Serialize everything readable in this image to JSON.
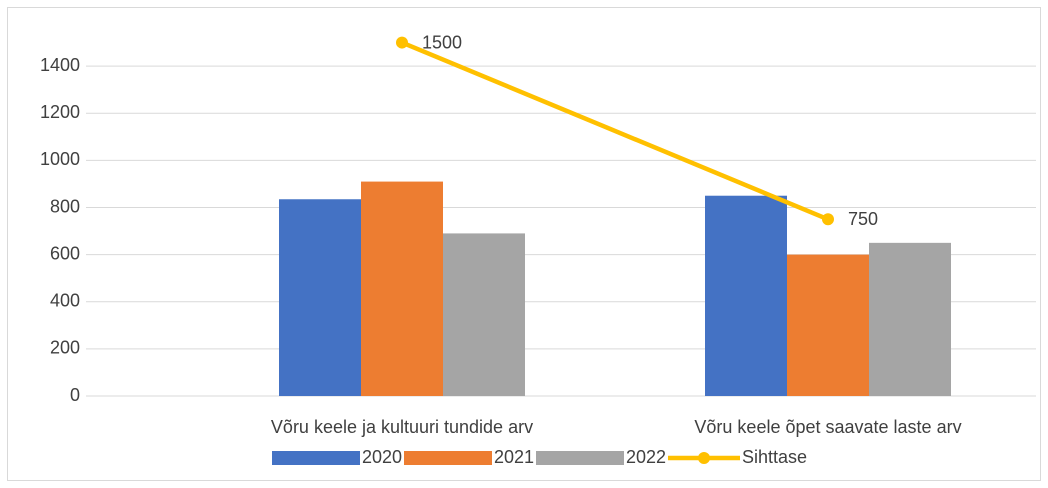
{
  "chart_data": {
    "type": "bar",
    "categories": [
      "Võru keele ja kultuuri tundide arv",
      "Võru keele õpet saavate laste arv"
    ],
    "series": [
      {
        "name": "2020",
        "color": "#4472c4",
        "values": [
          835,
          850
        ]
      },
      {
        "name": "2021",
        "color": "#ed7d31",
        "values": [
          910,
          600
        ]
      },
      {
        "name": "2022",
        "color": "#a5a5a5",
        "values": [
          690,
          650
        ]
      },
      {
        "name": "Sihttase",
        "type": "line",
        "color": "#ffc000",
        "values": [
          1500,
          750
        ],
        "data_labels": true
      }
    ],
    "ylim": [
      0,
      1600
    ],
    "yticks": [
      0,
      200,
      400,
      600,
      800,
      1000,
      1200,
      1400
    ],
    "grid": true,
    "legend": "bottom"
  }
}
